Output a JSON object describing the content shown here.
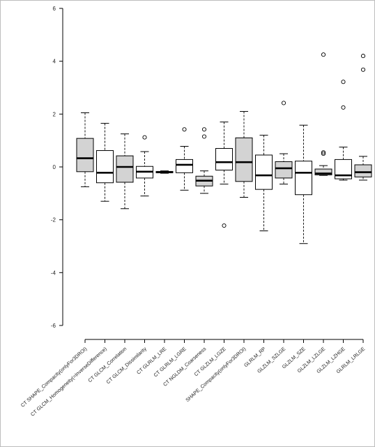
{
  "chart_data": {
    "type": "box",
    "title": "",
    "xlabel": "",
    "ylabel": "",
    "ylim": [
      -6,
      6
    ],
    "yticks": [
      "6",
      "4",
      "2",
      "0",
      "-2",
      "-4",
      "-6"
    ],
    "yticks_values": [
      6,
      4,
      2,
      0,
      -2,
      -4,
      -6
    ],
    "grid": false,
    "colors": {
      "shaded": "#d3d3d3",
      "unshaded": "#ffffff",
      "stroke": "#000000"
    },
    "boxes": [
      {
        "label": "CT SHAPE_Compacity(onlyFor3DROI)",
        "lw": -0.75,
        "q1": -0.18,
        "med": 0.33,
        "q3": 1.08,
        "uw": 2.05,
        "outliers": [],
        "fill": "shaded"
      },
      {
        "label": "CT GLCM_Homogeneity(=InverseDifference)",
        "lw": -1.3,
        "q1": -0.6,
        "med": -0.22,
        "q3": 0.62,
        "uw": 1.65,
        "outliers": [],
        "fill": "unshaded"
      },
      {
        "label": "CT GLCM_Correlation",
        "lw": -1.58,
        "q1": -0.58,
        "med": 0.0,
        "q3": 0.42,
        "uw": 1.25,
        "outliers": [],
        "fill": "shaded"
      },
      {
        "label": "CT GLCM_Dissimilarity",
        "lw": -1.1,
        "q1": -0.42,
        "med": -0.18,
        "q3": 0.02,
        "uw": 0.58,
        "outliers": [
          1.12
        ],
        "fill": "unshaded"
      },
      {
        "label": "CT GLRLM_LRE",
        "lw": -0.24,
        "q1": -0.22,
        "med": -0.2,
        "q3": -0.17,
        "uw": -0.15,
        "outliers": [],
        "fill": "unshaded"
      },
      {
        "label": "CT GLRLM_LGRE",
        "lw": -0.88,
        "q1": -0.22,
        "med": 0.08,
        "q3": 0.28,
        "uw": 0.78,
        "outliers": [
          1.42
        ],
        "fill": "unshaded"
      },
      {
        "label": "CT NGLDM_Coarseness",
        "lw": -1.0,
        "q1": -0.72,
        "med": -0.52,
        "q3": -0.35,
        "uw": -0.15,
        "outliers": [
          1.15,
          1.42
        ],
        "fill": "shaded"
      },
      {
        "label": "CT GLZLM_LGZE",
        "lw": -0.65,
        "q1": -0.12,
        "med": 0.18,
        "q3": 0.7,
        "uw": 1.7,
        "outliers": [
          -2.22
        ],
        "fill": "unshaded"
      },
      {
        "label": "SHAPE_Compacity(onlyFor3DROI)",
        "lw": -1.15,
        "q1": -0.55,
        "med": 0.18,
        "q3": 1.1,
        "uw": 2.1,
        "outliers": [],
        "fill": "shaded"
      },
      {
        "label": "GLRLM_RP",
        "lw": -2.42,
        "q1": -0.85,
        "med": -0.32,
        "q3": 0.45,
        "uw": 1.2,
        "outliers": [],
        "fill": "unshaded"
      },
      {
        "label": "GLZLM_SZLGE",
        "lw": -0.65,
        "q1": -0.42,
        "med": -0.05,
        "q3": 0.2,
        "uw": 0.5,
        "outliers": [
          2.42
        ],
        "fill": "shaded"
      },
      {
        "label": "GLZLM_SZE",
        "lw": -2.9,
        "q1": -1.05,
        "med": -0.22,
        "q3": 0.22,
        "uw": 1.58,
        "outliers": [],
        "fill": "unshaded"
      },
      {
        "label": "GLZLM_LZLGE",
        "lw": -0.32,
        "q1": -0.3,
        "med": -0.25,
        "q3": -0.08,
        "uw": 0.05,
        "outliers": [
          0.5,
          0.55,
          4.25
        ],
        "fill": "shaded"
      },
      {
        "label": "GLZLM_LZHGE",
        "lw": -0.5,
        "q1": -0.45,
        "med": -0.32,
        "q3": 0.28,
        "uw": 0.75,
        "outliers": [
          2.25,
          3.22
        ],
        "fill": "unshaded"
      },
      {
        "label": "GLRLM_LRLGE",
        "lw": -0.5,
        "q1": -0.38,
        "med": -0.2,
        "q3": 0.08,
        "uw": 0.4,
        "outliers": [
          3.68,
          4.2
        ],
        "fill": "shaded"
      }
    ]
  }
}
